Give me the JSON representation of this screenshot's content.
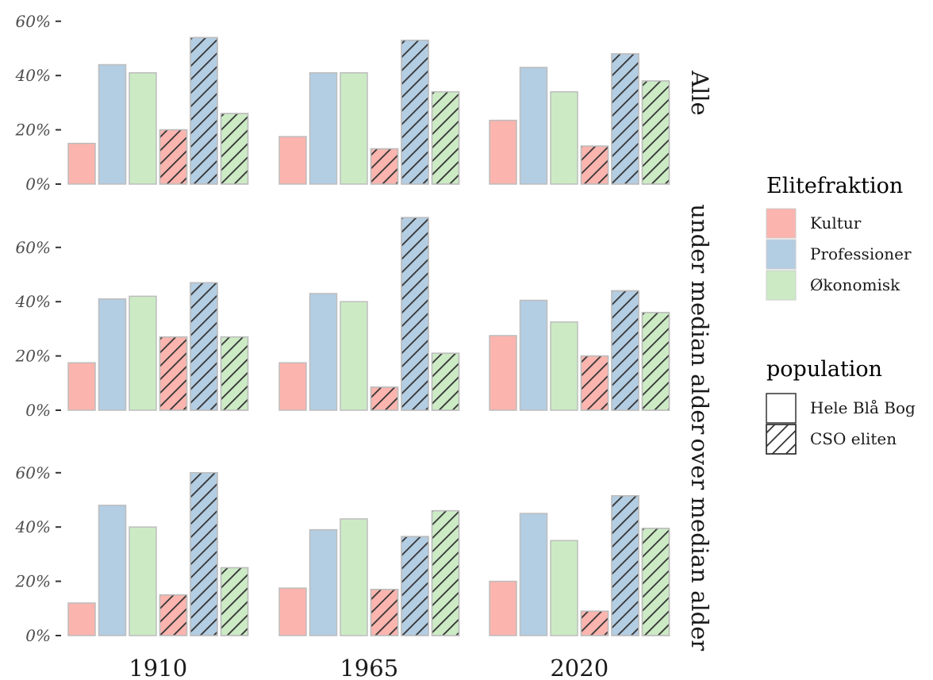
{
  "chart_data": {
    "type": "bar",
    "facet_rows": [
      "Alle",
      "under median alder",
      "over median alder"
    ],
    "facet_cols": [
      "1910",
      "1965",
      "2020"
    ],
    "y_ticks": [
      "0%",
      "20%",
      "40%",
      "60%"
    ],
    "ylim": [
      0,
      70
    ],
    "fill_legend": {
      "title": "Elitefraktion",
      "entries": [
        "Kultur",
        "Professioner",
        "Økonomisk"
      ],
      "colors": [
        "#fbb4ae",
        "#b3cde3",
        "#ccebc5"
      ]
    },
    "pattern_legend": {
      "title": "population",
      "entries": [
        "Hele Blå Bog",
        "CSO eliten"
      ]
    },
    "legend_position": "right",
    "grid": false,
    "bar_order": [
      {
        "fraction": "Kultur",
        "population": "Hele Blå Bog"
      },
      {
        "fraction": "Professioner",
        "population": "Hele Blå Bog"
      },
      {
        "fraction": "Økonomisk",
        "population": "Hele Blå Bog"
      },
      {
        "fraction": "Kultur",
        "population": "CSO eliten"
      },
      {
        "fraction": "Professioner",
        "population": "CSO eliten"
      },
      {
        "fraction": "Økonomisk",
        "population": "CSO eliten"
      }
    ],
    "values": [
      [
        [
          15,
          44,
          41,
          20,
          54,
          26
        ],
        [
          17.5,
          41,
          41,
          13,
          53,
          34
        ],
        [
          23.5,
          43,
          34,
          14,
          48,
          38
        ]
      ],
      [
        [
          17.5,
          41,
          42,
          27,
          47,
          27
        ],
        [
          17.5,
          43,
          40,
          8.5,
          71,
          21
        ],
        [
          27.5,
          40.5,
          32.5,
          20,
          44,
          36
        ]
      ],
      [
        [
          12,
          48,
          40,
          15,
          60,
          25
        ],
        [
          17.5,
          39,
          43,
          17,
          36.5,
          46
        ],
        [
          20,
          45,
          35,
          9,
          51.5,
          39.5
        ]
      ]
    ]
  }
}
